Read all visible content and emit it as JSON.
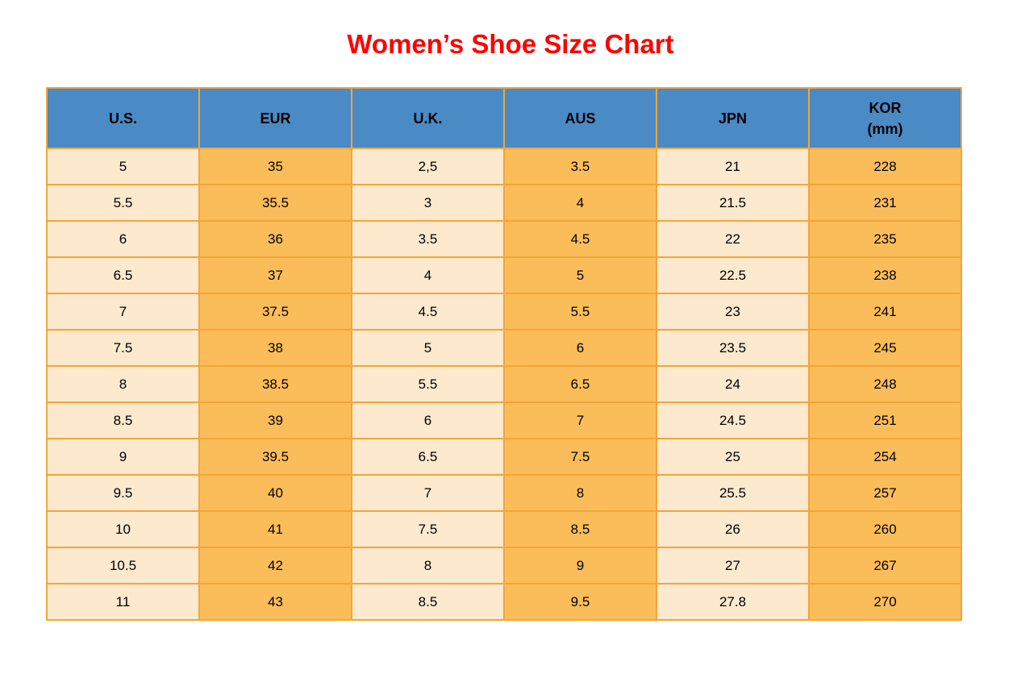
{
  "title": "Women’s Shoe Size Chart",
  "table": {
    "headers": [
      {
        "label": "U.S."
      },
      {
        "label": "EUR"
      },
      {
        "label": "U.K."
      },
      {
        "label": "AUS"
      },
      {
        "label": "JPN"
      },
      {
        "label": "KOR",
        "sub": "(mm)"
      }
    ],
    "rows": [
      [
        "5",
        "35",
        "2,5",
        "3.5",
        "21",
        "228"
      ],
      [
        "5.5",
        "35.5",
        "3",
        "4",
        "21.5",
        "231"
      ],
      [
        "6",
        "36",
        "3.5",
        "4.5",
        "22",
        "235"
      ],
      [
        "6.5",
        "37",
        "4",
        "5",
        "22.5",
        "238"
      ],
      [
        "7",
        "37.5",
        "4.5",
        "5.5",
        "23",
        "241"
      ],
      [
        "7.5",
        "38",
        "5",
        "6",
        "23.5",
        "245"
      ],
      [
        "8",
        "38.5",
        "5.5",
        "6.5",
        "24",
        "248"
      ],
      [
        "8.5",
        "39",
        "6",
        "7",
        "24.5",
        "251"
      ],
      [
        "9",
        "39.5",
        "6.5",
        "7.5",
        "25",
        "254"
      ],
      [
        "9.5",
        "40",
        "7",
        "8",
        "25.5",
        "257"
      ],
      [
        "10",
        "41",
        "7.5",
        "8.5",
        "26",
        "260"
      ],
      [
        "10.5",
        "42",
        "8",
        "9",
        "27",
        "267"
      ],
      [
        "11",
        "43",
        "8.5",
        "9.5",
        "27.8",
        "270"
      ]
    ]
  },
  "colors": {
    "title_red": "#fe0000",
    "header_blue": "#4a8ac5",
    "cell_light": "#fde9cd",
    "cell_orange": "#fbbd59",
    "border_orange": "#f3a53a",
    "text_black": "#000000"
  },
  "chart_data": {
    "type": "table",
    "title": "Women’s Shoe Size Chart",
    "columns": [
      "U.S.",
      "EUR",
      "U.K.",
      "AUS",
      "JPN",
      "KOR (mm)"
    ],
    "rows": [
      [
        "5",
        "35",
        "2,5",
        "3.5",
        "21",
        "228"
      ],
      [
        "5.5",
        "35.5",
        "3",
        "4",
        "21.5",
        "231"
      ],
      [
        "6",
        "36",
        "3.5",
        "4.5",
        "22",
        "235"
      ],
      [
        "6.5",
        "37",
        "4",
        "5",
        "22.5",
        "238"
      ],
      [
        "7",
        "37.5",
        "4.5",
        "5.5",
        "23",
        "241"
      ],
      [
        "7.5",
        "38",
        "5",
        "6",
        "23.5",
        "245"
      ],
      [
        "8",
        "38.5",
        "5.5",
        "6.5",
        "24",
        "248"
      ],
      [
        "8.5",
        "39",
        "6",
        "7",
        "24.5",
        "251"
      ],
      [
        "9",
        "39.5",
        "6.5",
        "7.5",
        "25",
        "254"
      ],
      [
        "9.5",
        "40",
        "7",
        "8",
        "25.5",
        "257"
      ],
      [
        "10",
        "41",
        "7.5",
        "8.5",
        "26",
        "260"
      ],
      [
        "10.5",
        "42",
        "8",
        "9",
        "27",
        "267"
      ],
      [
        "11",
        "43",
        "8.5",
        "9.5",
        "27.8",
        "270"
      ]
    ]
  }
}
